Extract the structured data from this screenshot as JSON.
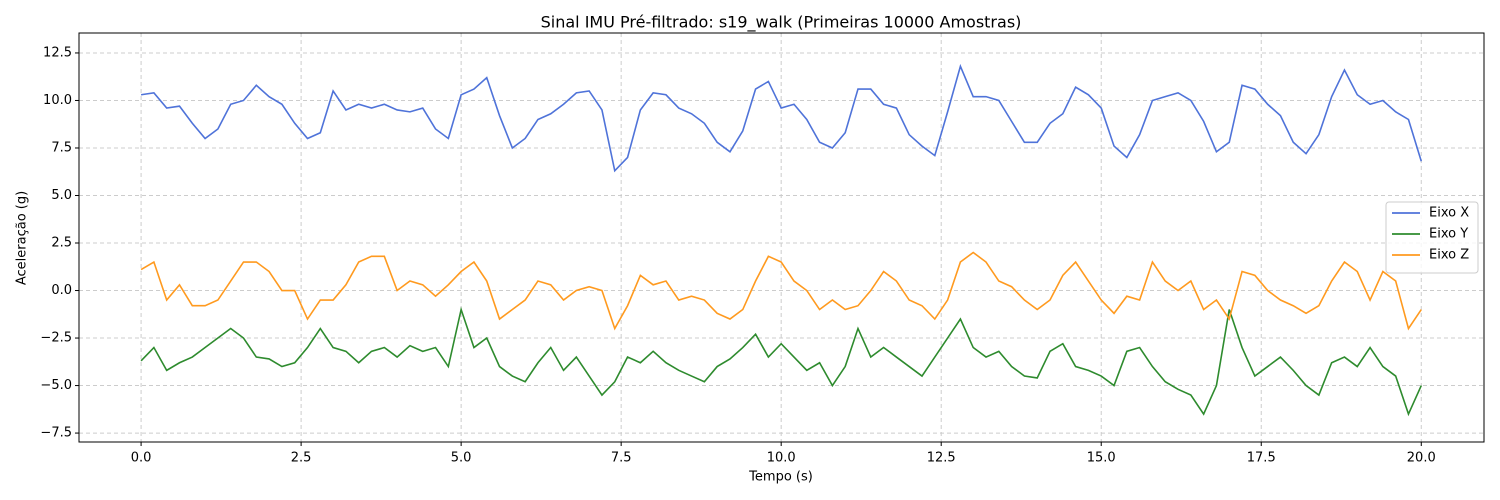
{
  "chart_data": {
    "type": "line",
    "title": "Sinal IMU Pré-filtrado: s19_walk (Primeiras 10000 Amostras)",
    "x_label": "Tempo (s)",
    "y_label": "Aceleração (g)",
    "x": [
      0,
      0.2,
      0.4,
      0.6,
      0.8,
      1,
      1.2,
      1.4,
      1.6,
      1.8,
      2,
      2.2,
      2.4,
      2.6,
      2.8,
      3,
      3.2,
      3.4,
      3.6,
      3.8,
      4,
      4.2,
      4.4,
      4.6,
      4.8,
      5,
      5.2,
      5.4,
      5.6,
      5.8,
      6,
      6.2,
      6.4,
      6.6,
      6.8,
      7,
      7.2,
      7.4,
      7.6,
      7.8,
      8,
      8.2,
      8.4,
      8.6,
      8.8,
      9,
      9.2,
      9.4,
      9.6,
      9.8,
      10,
      10.2,
      10.4,
      10.6,
      10.8,
      11,
      11.2,
      11.4,
      11.6,
      11.8,
      12,
      12.2,
      12.4,
      12.6,
      12.8,
      13,
      13.2,
      13.4,
      13.6,
      13.8,
      14,
      14.2,
      14.4,
      14.6,
      14.8,
      15,
      15.2,
      15.4,
      15.6,
      15.8,
      16,
      16.2,
      16.4,
      16.6,
      16.8,
      17,
      17.2,
      17.4,
      17.6,
      17.8,
      18,
      18.2,
      18.4,
      18.6,
      18.8,
      19,
      19.2,
      19.4,
      19.6,
      19.8,
      20
    ],
    "series": [
      {
        "name": "Eixo X",
        "color": "#4f73d9",
        "values": [
          10.3,
          10.4,
          9.6,
          9.7,
          8.8,
          8.0,
          8.5,
          9.8,
          10.0,
          10.8,
          10.2,
          9.8,
          8.8,
          8.0,
          8.3,
          10.5,
          9.5,
          9.8,
          9.6,
          9.8,
          9.5,
          9.4,
          9.6,
          8.5,
          8.0,
          10.3,
          10.6,
          11.2,
          9.2,
          7.5,
          8.0,
          9.0,
          9.3,
          9.8,
          10.4,
          10.5,
          9.5,
          6.3,
          7.0,
          9.5,
          10.4,
          10.3,
          9.6,
          9.3,
          8.8,
          7.8,
          7.3,
          8.4,
          10.6,
          11.0,
          9.6,
          9.8,
          9.0,
          7.8,
          7.5,
          8.3,
          10.6,
          10.6,
          9.8,
          9.6,
          8.2,
          7.6,
          7.1,
          9.4,
          11.8,
          10.2,
          10.2,
          10.0,
          8.9,
          7.8,
          7.8,
          8.8,
          9.3,
          10.7,
          10.3,
          9.6,
          7.6,
          7.0,
          8.2,
          10.0,
          10.2,
          10.4,
          10.0,
          8.9,
          7.3,
          7.8,
          10.8,
          10.6,
          9.8,
          9.2,
          7.8,
          7.2,
          8.2,
          10.2,
          11.6,
          10.3,
          9.8,
          10.0,
          9.4,
          9.0,
          6.8
        ]
      },
      {
        "name": "Eixo Y",
        "color": "#2e8b2e",
        "values": [
          -3.7,
          -3.0,
          -4.2,
          -3.8,
          -3.5,
          -3.0,
          -2.5,
          -2.0,
          -2.5,
          -3.5,
          -3.6,
          -4.0,
          -3.8,
          -3.0,
          -2.0,
          -3.0,
          -3.2,
          -3.8,
          -3.2,
          -3.0,
          -3.5,
          -2.9,
          -3.2,
          -3.0,
          -4.0,
          -1.0,
          -3.0,
          -2.5,
          -4.0,
          -4.5,
          -4.8,
          -3.8,
          -3.0,
          -4.2,
          -3.5,
          -4.5,
          -5.5,
          -4.8,
          -3.5,
          -3.8,
          -3.2,
          -3.8,
          -4.2,
          -4.5,
          -4.8,
          -4.0,
          -3.6,
          -3.0,
          -2.3,
          -3.5,
          -2.8,
          -3.5,
          -4.2,
          -3.8,
          -5.0,
          -4.0,
          -2.0,
          -3.5,
          -3.0,
          -3.5,
          -4.0,
          -4.5,
          -3.5,
          -2.5,
          -1.5,
          -3.0,
          -3.5,
          -3.2,
          -4.0,
          -4.5,
          -4.6,
          -3.2,
          -2.8,
          -4.0,
          -4.2,
          -4.5,
          -5.0,
          -3.2,
          -3.0,
          -4.0,
          -4.8,
          -5.2,
          -5.5,
          -6.5,
          -5.0,
          -1.0,
          -3.0,
          -4.5,
          -4.0,
          -3.5,
          -4.2,
          -5.0,
          -5.5,
          -3.8,
          -3.5,
          -4.0,
          -3.0,
          -4.0,
          -4.5,
          -6.5,
          -5.0
        ]
      },
      {
        "name": "Eixo Z",
        "color": "#ff9a1f",
        "values": [
          1.1,
          1.5,
          -0.5,
          0.3,
          -0.8,
          -0.8,
          -0.5,
          0.5,
          1.5,
          1.5,
          1.0,
          0.0,
          0.0,
          -1.5,
          -0.5,
          -0.5,
          0.3,
          1.5,
          1.8,
          1.8,
          0.0,
          0.5,
          0.3,
          -0.3,
          0.3,
          1.0,
          1.5,
          0.5,
          -1.5,
          -1.0,
          -0.5,
          0.5,
          0.3,
          -0.5,
          0.0,
          0.2,
          0.0,
          -2.0,
          -0.8,
          0.8,
          0.3,
          0.5,
          -0.5,
          -0.3,
          -0.5,
          -1.2,
          -1.5,
          -1.0,
          0.5,
          1.8,
          1.5,
          0.5,
          0.0,
          -1.0,
          -0.5,
          -1.0,
          -0.8,
          0.0,
          1.0,
          0.5,
          -0.5,
          -0.8,
          -1.5,
          -0.5,
          1.5,
          2.0,
          1.5,
          0.5,
          0.2,
          -0.5,
          -1.0,
          -0.5,
          0.8,
          1.5,
          0.5,
          -0.5,
          -1.2,
          -0.3,
          -0.5,
          1.5,
          0.5,
          0.0,
          0.5,
          -1.0,
          -0.5,
          -1.5,
          1.0,
          0.8,
          0.0,
          -0.5,
          -0.8,
          -1.2,
          -0.8,
          0.5,
          1.5,
          1.0,
          -0.5,
          1.0,
          0.5,
          -2.0,
          -1.0
        ]
      }
    ],
    "xlim": [
      -0.97,
      20.98
    ],
    "ylim": [
      -7.97,
      13.55
    ],
    "xticks": [
      {
        "value": 0,
        "label": "0.0"
      },
      2.5,
      {
        "value": 5,
        "label": "5.0"
      },
      7.5,
      {
        "value": 10,
        "label": "10.0"
      },
      12.5,
      {
        "value": 15,
        "label": "15.0"
      },
      17.5,
      {
        "value": 20,
        "label": "20.0"
      }
    ],
    "yticks": [
      {
        "value": -7.5,
        "label": "−7.5"
      },
      {
        "value": -5,
        "label": "−5.0"
      },
      {
        "value": -2.5,
        "label": "−2.5"
      },
      {
        "value": 0,
        "label": "0.0"
      },
      2.5,
      {
        "value": 5,
        "label": "5.0"
      },
      7.5,
      {
        "value": 10,
        "label": "10.0"
      },
      12.5
    ],
    "grid": true,
    "legend": "center right"
  }
}
